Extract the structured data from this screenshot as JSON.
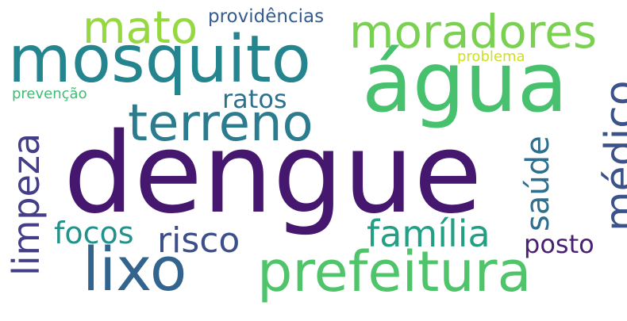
{
  "words": [
    {
      "id": "dengue",
      "text": "dengue",
      "color": "#45176f"
    },
    {
      "id": "agua",
      "text": "água",
      "color": "#47c16e"
    },
    {
      "id": "mosquito",
      "text": "mosquito",
      "color": "#25858e"
    },
    {
      "id": "prefeitura",
      "text": "prefeitura",
      "color": "#50c46a"
    },
    {
      "id": "lixo",
      "text": "lixo",
      "color": "#32648e"
    },
    {
      "id": "terreno",
      "text": "terreno",
      "color": "#2b7c8e"
    },
    {
      "id": "moradores",
      "text": "moradores",
      "color": "#7ad151"
    },
    {
      "id": "mato",
      "text": "mato",
      "color": "#95d840"
    },
    {
      "id": "medico",
      "text": "médico",
      "color": "#3b528b"
    },
    {
      "id": "limpeza",
      "text": "limpeza",
      "color": "#433e85"
    },
    {
      "id": "familia",
      "text": "família",
      "color": "#23a083"
    },
    {
      "id": "risco",
      "text": "risco",
      "color": "#3c4f8a"
    },
    {
      "id": "saude",
      "text": "saúde",
      "color": "#2e6f8e"
    },
    {
      "id": "focos",
      "text": "focos",
      "color": "#21928c"
    },
    {
      "id": "ratos",
      "text": "ratos",
      "color": "#2d718e"
    },
    {
      "id": "posto",
      "text": "posto",
      "color": "#482173"
    },
    {
      "id": "providencias",
      "text": "providências",
      "color": "#365c8d"
    },
    {
      "id": "problema",
      "text": "problema",
      "color": "#cde11d"
    },
    {
      "id": "prevencao",
      "text": "prevenção",
      "color": "#3fbc73"
    }
  ]
}
